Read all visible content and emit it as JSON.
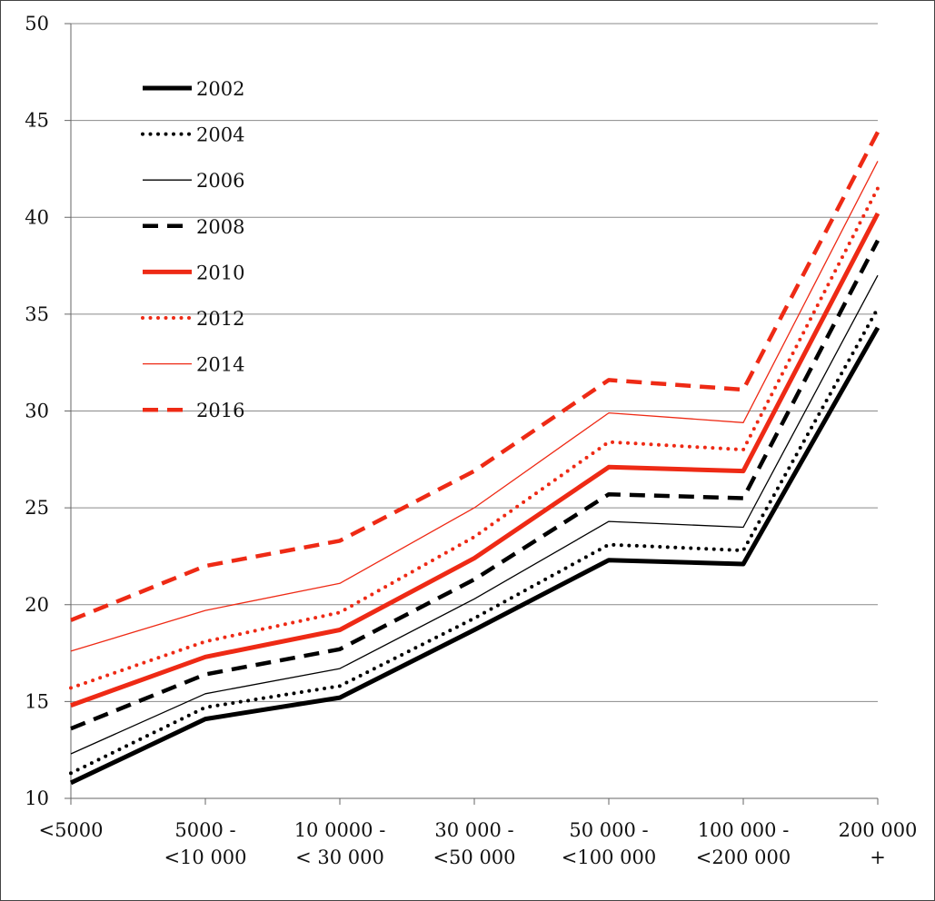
{
  "chart_data": {
    "type": "line",
    "title": "",
    "xlabel": "",
    "ylabel": "",
    "ylim": [
      10,
      50
    ],
    "yticks": [
      10,
      15,
      20,
      25,
      30,
      35,
      40,
      45,
      50
    ],
    "grid": true,
    "legend_position": "top-left",
    "categories": [
      [
        "<5000"
      ],
      [
        "5000 -",
        "<10 000"
      ],
      [
        "10 0000 -",
        "< 30 000"
      ],
      [
        "30 000 -",
        "<50 000"
      ],
      [
        "50 000 -",
        "<100 000"
      ],
      [
        "100 000 -",
        "<200 000"
      ],
      [
        "200 000",
        "+"
      ]
    ],
    "series": [
      {
        "name": "2002",
        "color": "#000000",
        "style": "solid-thick",
        "values": [
          10.8,
          14.1,
          15.2,
          18.7,
          22.3,
          22.1,
          34.3
        ]
      },
      {
        "name": "2004",
        "color": "#000000",
        "style": "dotted",
        "values": [
          11.3,
          14.7,
          15.8,
          19.3,
          23.1,
          22.8,
          35.3
        ]
      },
      {
        "name": "2006",
        "color": "#000000",
        "style": "solid-thin",
        "values": [
          12.3,
          15.4,
          16.7,
          20.3,
          24.3,
          24.0,
          37.0
        ]
      },
      {
        "name": "2008",
        "color": "#000000",
        "style": "dashed",
        "values": [
          13.6,
          16.4,
          17.7,
          21.3,
          25.7,
          25.5,
          38.8
        ]
      },
      {
        "name": "2010",
        "color": "#ee2a15",
        "style": "solid-thick",
        "values": [
          14.8,
          17.3,
          18.7,
          22.4,
          27.1,
          26.9,
          40.2
        ]
      },
      {
        "name": "2012",
        "color": "#ee2a15",
        "style": "dotted",
        "values": [
          15.7,
          18.1,
          19.6,
          23.5,
          28.4,
          28.0,
          41.5
        ]
      },
      {
        "name": "2014",
        "color": "#ee2a15",
        "style": "solid-thin",
        "values": [
          17.6,
          19.7,
          21.1,
          25.0,
          29.9,
          29.4,
          42.9
        ]
      },
      {
        "name": "2016",
        "color": "#ee2a15",
        "style": "dashed",
        "values": [
          19.2,
          22.0,
          23.3,
          26.9,
          31.6,
          31.1,
          44.4
        ]
      }
    ]
  }
}
